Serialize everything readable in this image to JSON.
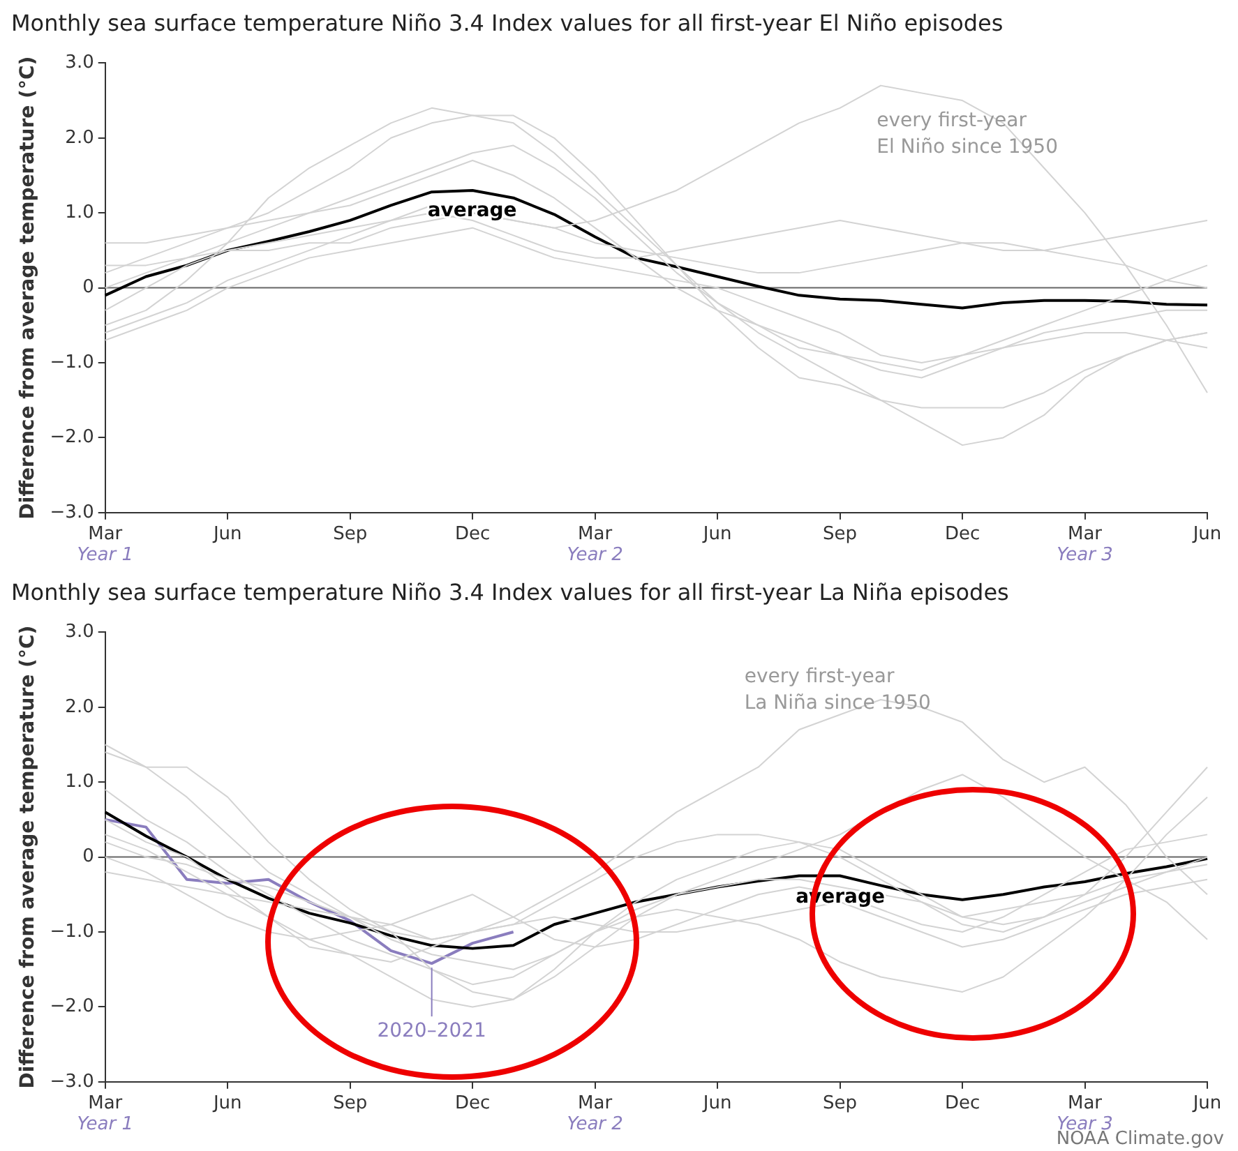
{
  "chart_data": [
    {
      "type": "line",
      "title": "Monthly sea surface temperature Niño 3.4 Index values for all first-year El Niño episodes",
      "ylabel": "Difference from average temperature (°C)",
      "categories": [
        "Mar\nYear 1",
        null,
        null,
        "Jun",
        null,
        null,
        "Sep",
        null,
        null,
        "Dec",
        null,
        null,
        "Mar\nYear 2",
        null,
        null,
        "Jun",
        null,
        null,
        "Sep",
        null,
        null,
        "Dec",
        null,
        null,
        "Mar\nYear 3",
        null,
        null,
        "Jun"
      ],
      "ylim": [
        -3,
        3
      ],
      "yticks": [
        {
          "value": -3,
          "label": "−3.0"
        },
        {
          "value": -2,
          "label": "−2.0"
        },
        {
          "value": -1,
          "label": "−1.0"
        },
        0,
        {
          "value": 1,
          "label": "1.0"
        },
        {
          "value": 2,
          "label": "2.0"
        },
        {
          "value": 3,
          "label": "3.0"
        }
      ],
      "grid": false,
      "legend": false,
      "marker": "none",
      "line_style": "solid",
      "ref_lines": [
        {
          "axis": "y",
          "value": 0,
          "color": "#666666"
        }
      ],
      "annotations": [
        "average",
        "every first-year\nEl Niño since 1950"
      ],
      "series": [
        {
          "color": "#d3d3d3",
          "values": [
            -0.5,
            -0.3,
            0.1,
            0.6,
            1.2,
            1.6,
            1.9,
            2.2,
            2.4,
            2.3,
            2.2,
            1.8,
            1.3,
            0.8,
            0.3,
            -0.3,
            -0.8,
            -1.2,
            -1.3,
            -1.5,
            -1.6,
            -1.6,
            -1.6,
            -1.4,
            -1.1,
            -0.9,
            -0.7,
            -0.6
          ]
        },
        {
          "color": "#d3d3d3",
          "values": [
            -0.6,
            -0.4,
            -0.2,
            0.1,
            0.3,
            0.5,
            0.7,
            0.9,
            1.1,
            1.0,
            0.9,
            0.8,
            0.9,
            1.1,
            1.3,
            1.6,
            1.9,
            2.2,
            2.4,
            2.7,
            2.6,
            2.5,
            2.2,
            1.6,
            1.0,
            0.3,
            -0.5,
            -1.4
          ]
        },
        {
          "color": "#d3d3d3",
          "values": [
            0.2,
            0.4,
            0.6,
            0.8,
            1.0,
            1.3,
            1.6,
            2.0,
            2.2,
            2.3,
            2.3,
            2.0,
            1.5,
            0.9,
            0.3,
            -0.2,
            -0.6,
            -0.9,
            -1.2,
            -1.5,
            -1.8,
            -2.1,
            -2.0,
            -1.7,
            -1.2,
            -0.9,
            -0.7,
            -0.6
          ]
        },
        {
          "color": "#d3d3d3",
          "values": [
            -0.3,
            0.0,
            0.3,
            0.5,
            0.6,
            0.7,
            0.8,
            0.9,
            1.0,
            0.9,
            0.7,
            0.5,
            0.4,
            0.4,
            0.5,
            0.6,
            0.7,
            0.8,
            0.9,
            0.8,
            0.7,
            0.6,
            0.5,
            0.5,
            0.6,
            0.7,
            0.8,
            0.9
          ]
        },
        {
          "color": "#d3d3d3",
          "values": [
            0.6,
            0.6,
            0.7,
            0.8,
            0.9,
            1.0,
            1.1,
            1.3,
            1.5,
            1.7,
            1.5,
            1.2,
            0.8,
            0.4,
            0.0,
            -0.3,
            -0.5,
            -0.8,
            -0.9,
            -1.0,
            -1.1,
            -0.9,
            -0.7,
            -0.5,
            -0.3,
            -0.1,
            0.1,
            0.3
          ]
        },
        {
          "color": "#d3d3d3",
          "values": [
            -0.7,
            -0.5,
            -0.3,
            0.0,
            0.2,
            0.4,
            0.5,
            0.6,
            0.7,
            0.8,
            0.6,
            0.4,
            0.3,
            0.2,
            0.1,
            0.0,
            -0.2,
            -0.4,
            -0.6,
            -0.9,
            -1.0,
            -0.9,
            -0.8,
            -0.6,
            -0.5,
            -0.4,
            -0.3,
            -0.3
          ]
        },
        {
          "color": "#d3d3d3",
          "values": [
            0.0,
            0.2,
            0.4,
            0.6,
            0.8,
            1.0,
            1.2,
            1.4,
            1.6,
            1.8,
            1.9,
            1.6,
            1.2,
            0.7,
            0.2,
            -0.2,
            -0.5,
            -0.7,
            -0.9,
            -1.1,
            -1.2,
            -1.0,
            -0.8,
            -0.7,
            -0.6,
            -0.6,
            -0.7,
            -0.8
          ]
        },
        {
          "color": "#d3d3d3",
          "values": [
            0.3,
            0.3,
            0.4,
            0.5,
            0.5,
            0.6,
            0.6,
            0.8,
            0.9,
            1.0,
            0.9,
            0.8,
            0.6,
            0.5,
            0.4,
            0.3,
            0.2,
            0.2,
            0.3,
            0.4,
            0.5,
            0.6,
            0.6,
            0.5,
            0.4,
            0.3,
            0.1,
            0.0
          ]
        },
        {
          "color": "#000000",
          "values": [
            -0.1,
            0.15,
            0.3,
            0.5,
            0.62,
            0.75,
            0.9,
            1.1,
            1.28,
            1.3,
            1.2,
            0.98,
            0.68,
            0.4,
            0.28,
            0.15,
            0.02,
            -0.1,
            -0.15,
            -0.17,
            -0.22,
            -0.27,
            -0.2,
            -0.17,
            -0.17,
            -0.18,
            -0.22,
            -0.23
          ]
        }
      ]
    },
    {
      "type": "line",
      "title": "Monthly sea surface temperature Niño 3.4 Index values for all first-year La Niña episodes",
      "ylabel": "Difference from average temperature (°C)",
      "categories": [
        "Mar\nYear 1",
        null,
        null,
        "Jun",
        null,
        null,
        "Sep",
        null,
        null,
        "Dec",
        null,
        null,
        "Mar\nYear 2",
        null,
        null,
        "Jun",
        null,
        null,
        "Sep",
        null,
        null,
        "Dec",
        null,
        null,
        "Mar\nYear 3",
        null,
        null,
        "Jun"
      ],
      "ylim": [
        -3,
        3
      ],
      "yticks": [
        {
          "value": -3,
          "label": "−3.0"
        },
        {
          "value": -2,
          "label": "−2.0"
        },
        {
          "value": -1,
          "label": "−1.0"
        },
        0,
        {
          "value": 1,
          "label": "1.0"
        },
        {
          "value": 2,
          "label": "2.0"
        },
        {
          "value": 3,
          "label": "3.0"
        }
      ],
      "grid": false,
      "legend": false,
      "marker": "none",
      "line_style": "solid",
      "ref_lines": [
        {
          "axis": "y",
          "value": 0,
          "color": "#666666"
        }
      ],
      "annotations": [
        "average",
        "every first-year\nLa Niña since 1950",
        "NOAA Climate.gov"
      ],
      "series": [
        {
          "color": "#d3d3d3",
          "values": [
            1.5,
            1.2,
            0.8,
            0.3,
            -0.2,
            -0.5,
            -0.8,
            -1.0,
            -1.1,
            -1.0,
            -0.8,
            -0.5,
            -0.2,
            0.2,
            0.6,
            0.9,
            1.2,
            1.7,
            1.9,
            2.1,
            2.0,
            1.8,
            1.3,
            1.0,
            1.2,
            0.7,
            0.0,
            -0.5
          ]
        },
        {
          "color": "#d3d3d3",
          "values": [
            1.4,
            1.2,
            1.2,
            0.8,
            0.2,
            -0.3,
            -0.7,
            -1.0,
            -1.5,
            -1.8,
            -1.9,
            -1.6,
            -1.2,
            -0.8,
            -0.5,
            -0.3,
            -0.1,
            0.1,
            0.3,
            0.6,
            0.9,
            1.1,
            0.8,
            0.4,
            0.0,
            -0.3,
            -0.6,
            -1.1
          ]
        },
        {
          "color": "#d3d3d3",
          "values": [
            0.9,
            0.5,
            0.2,
            -0.2,
            -0.5,
            -0.8,
            -1.1,
            -1.3,
            -1.5,
            -1.7,
            -1.6,
            -1.3,
            -1.0,
            -0.8,
            -0.7,
            -0.8,
            -0.9,
            -1.1,
            -1.4,
            -1.6,
            -1.7,
            -1.8,
            -1.6,
            -1.2,
            -0.8,
            -0.3,
            0.3,
            0.8
          ]
        },
        {
          "color": "#d3d3d3",
          "values": [
            0.3,
            0.1,
            -0.2,
            -0.5,
            -0.8,
            -1.1,
            -1.3,
            -1.6,
            -1.9,
            -2.0,
            -1.9,
            -1.5,
            -1.0,
            -0.6,
            -0.3,
            -0.1,
            0.1,
            0.2,
            0.1,
            -0.2,
            -0.5,
            -0.8,
            -0.9,
            -0.8,
            -0.5,
            0.0,
            0.6,
            1.2
          ]
        },
        {
          "color": "#d3d3d3",
          "values": [
            -0.2,
            -0.3,
            -0.4,
            -0.5,
            -0.6,
            -0.7,
            -0.8,
            -0.9,
            -1.1,
            -1.0,
            -0.9,
            -0.6,
            -0.3,
            0.0,
            0.2,
            0.3,
            0.3,
            0.2,
            0.0,
            -0.3,
            -0.6,
            -0.9,
            -1.0,
            -0.8,
            -0.6,
            -0.4,
            -0.2,
            0.0
          ]
        },
        {
          "color": "#d3d3d3",
          "values": [
            0.5,
            0.2,
            0.0,
            -0.4,
            -0.8,
            -1.2,
            -1.3,
            -1.4,
            -1.2,
            -1.0,
            -0.9,
            -0.8,
            -0.9,
            -1.0,
            -1.0,
            -0.9,
            -0.8,
            -0.7,
            -0.6,
            -0.8,
            -1.0,
            -1.2,
            -1.1,
            -0.9,
            -0.7,
            -0.5,
            -0.4,
            -0.3
          ]
        },
        {
          "color": "#d3d3d3",
          "values": [
            0.0,
            -0.2,
            -0.5,
            -0.8,
            -1.0,
            -1.1,
            -1.0,
            -0.9,
            -0.7,
            -0.5,
            -0.8,
            -1.1,
            -1.2,
            -1.1,
            -0.9,
            -0.7,
            -0.5,
            -0.4,
            -0.5,
            -0.7,
            -0.9,
            -1.0,
            -0.8,
            -0.5,
            -0.2,
            0.1,
            0.2,
            0.3
          ]
        },
        {
          "color": "#d3d3d3",
          "values": [
            0.2,
            0.0,
            -0.1,
            -0.3,
            -0.4,
            -0.6,
            -0.8,
            -1.1,
            -1.3,
            -1.4,
            -1.5,
            -1.3,
            -1.0,
            -0.7,
            -0.5,
            -0.4,
            -0.3,
            -0.3,
            -0.4,
            -0.5,
            -0.6,
            -0.8,
            -0.7,
            -0.6,
            -0.5,
            -0.3,
            -0.2,
            -0.1
          ]
        },
        {
          "color": "#000000",
          "values": [
            0.6,
            0.28,
            0.0,
            -0.3,
            -0.55,
            -0.75,
            -0.88,
            -1.05,
            -1.18,
            -1.22,
            -1.18,
            -0.9,
            -0.75,
            -0.6,
            -0.5,
            -0.4,
            -0.32,
            -0.25,
            -0.25,
            -0.38,
            -0.5,
            -0.57,
            -0.5,
            -0.4,
            -0.33,
            -0.22,
            -0.13,
            -0.02
          ]
        },
        {
          "name": "2020–2021",
          "color": "#8a7dbe",
          "values": [
            0.5,
            0.4,
            -0.3,
            -0.35,
            -0.3,
            -0.6,
            -0.85,
            -1.25,
            -1.42,
            -1.15,
            -1.0,
            null,
            null,
            null,
            null,
            null,
            null,
            null,
            null,
            null,
            null,
            null,
            null,
            null,
            null,
            null,
            null,
            null
          ]
        }
      ]
    }
  ]
}
